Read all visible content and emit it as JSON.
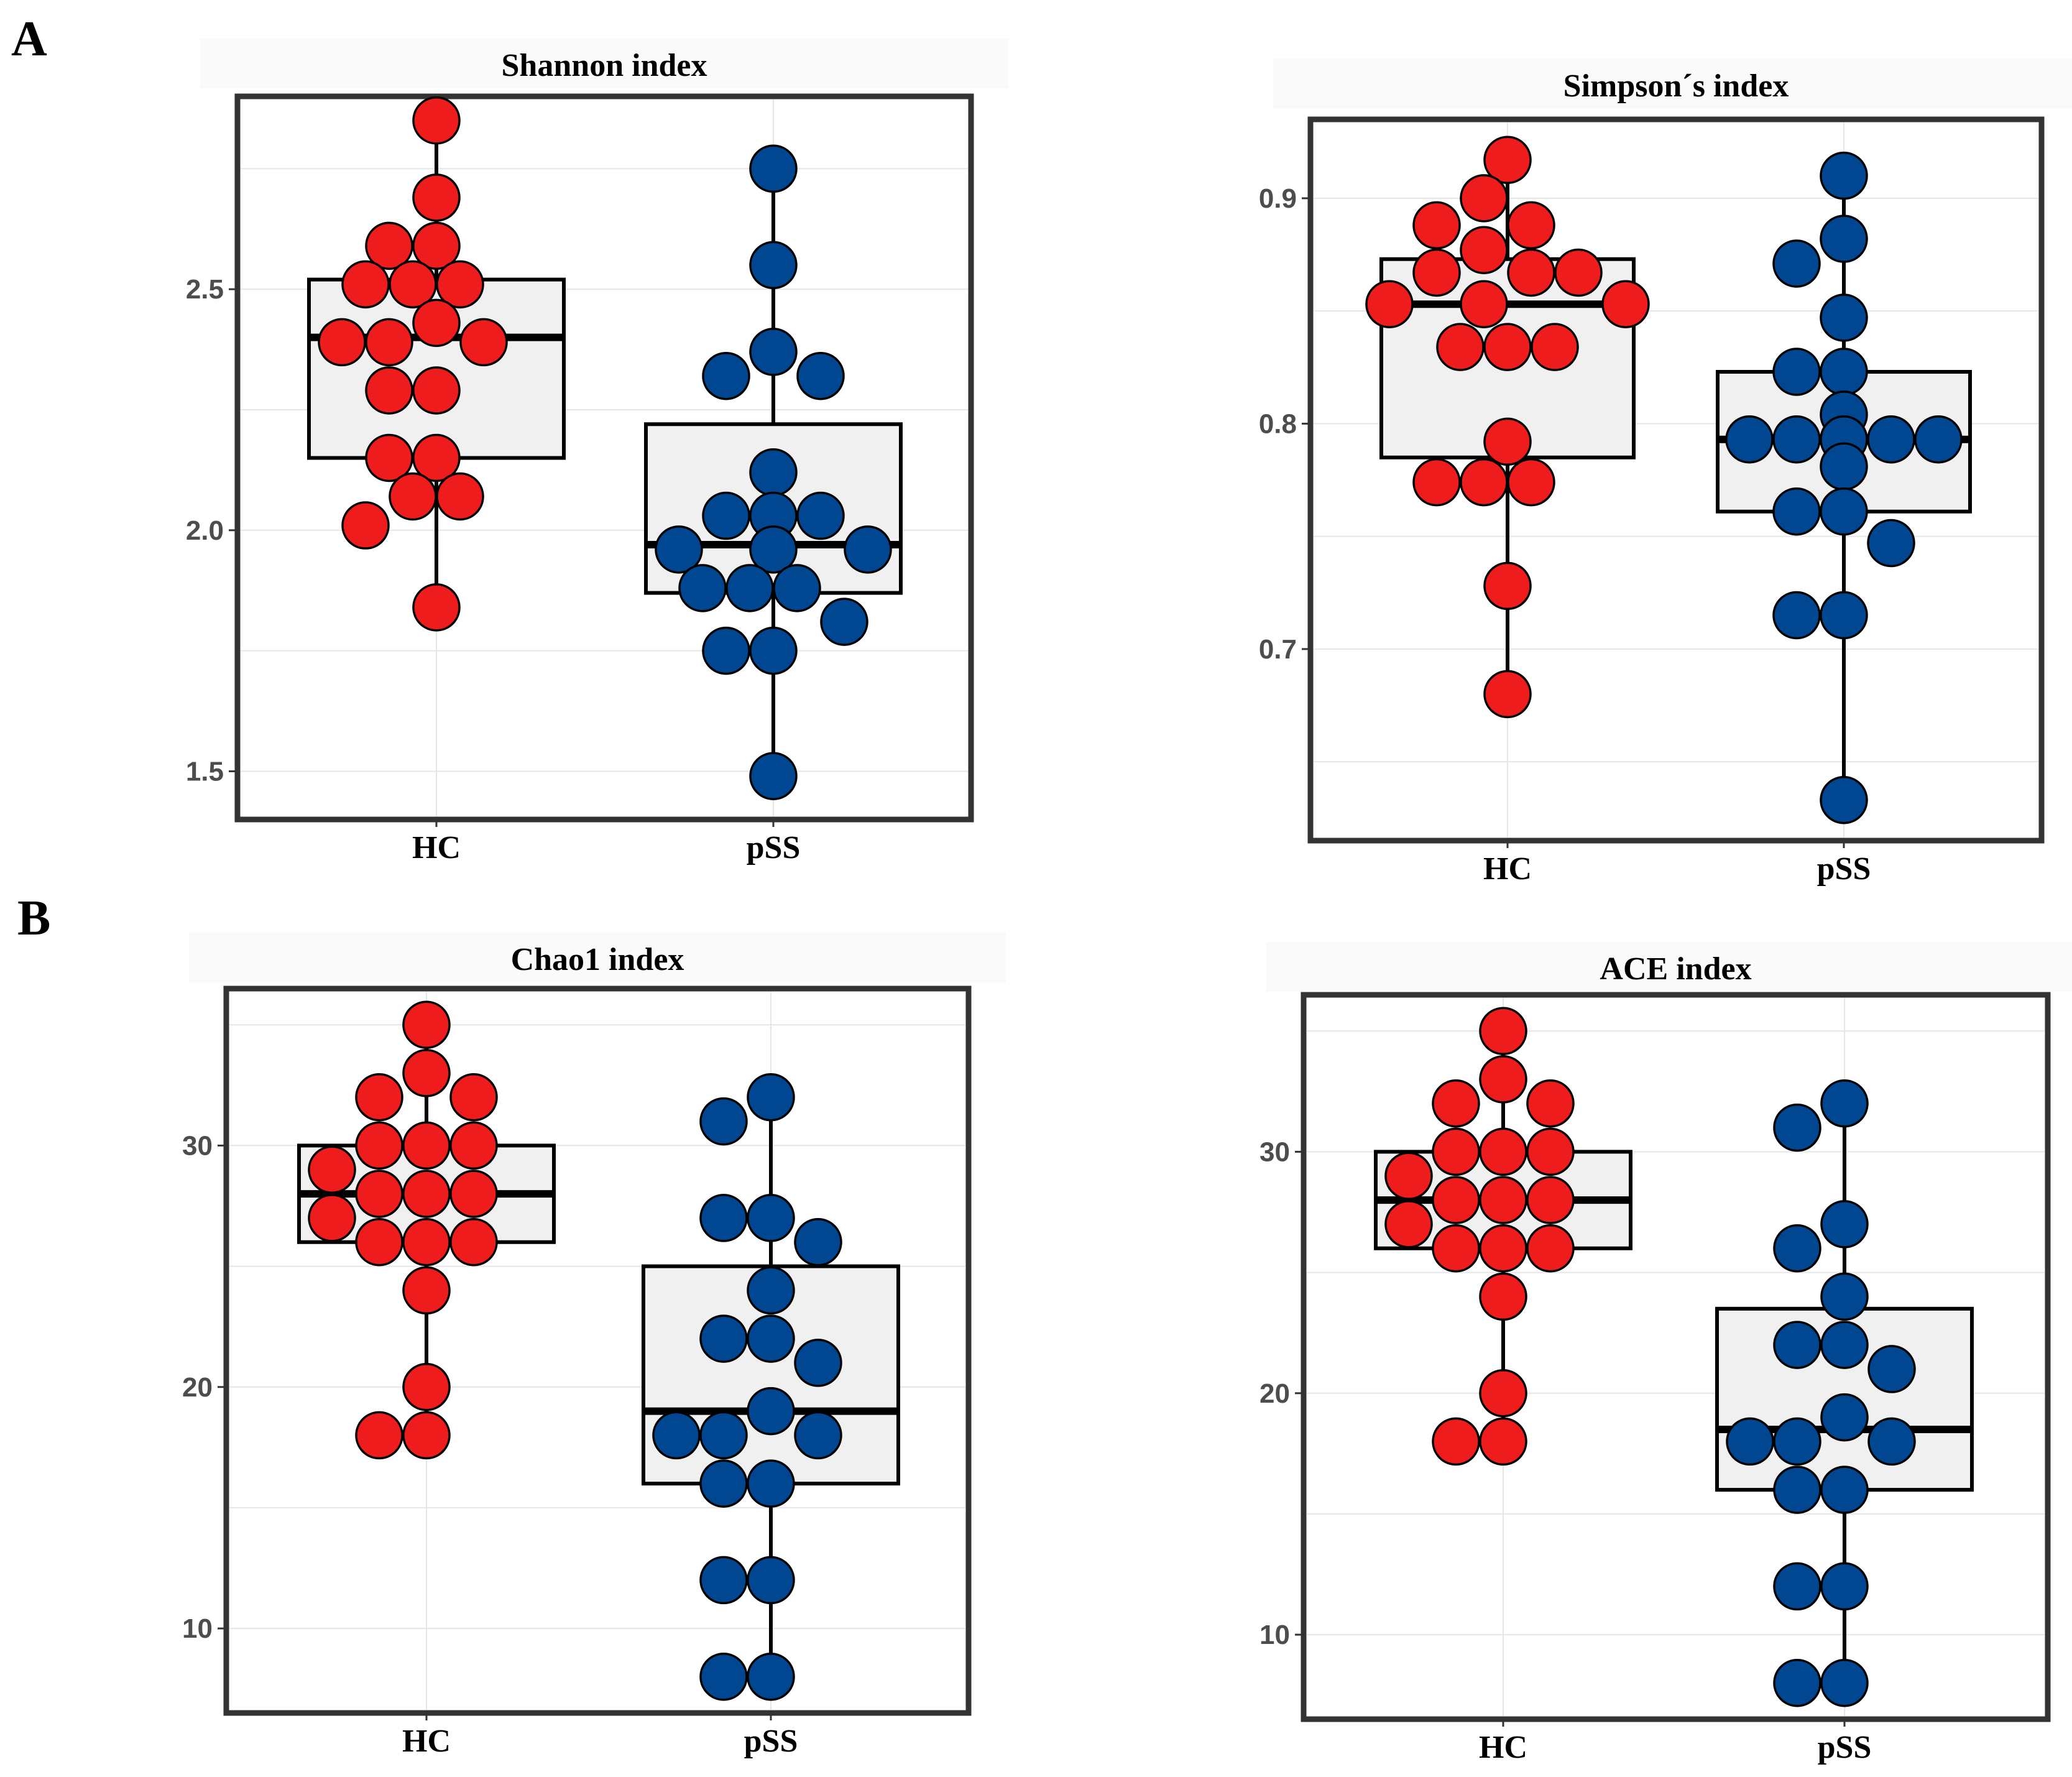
{
  "panel_labels": {
    "a": "A",
    "b": "B"
  },
  "colors": {
    "hc": "#ee1c1c",
    "pss": "#004690"
  },
  "chart_data": [
    {
      "id": "shannon",
      "type": "box",
      "title": "Shannon index",
      "categories": [
        "HC",
        "pSS"
      ],
      "ylim": [
        1.4,
        2.9
      ],
      "yticks": [
        "1.5",
        "2.0",
        "2.5"
      ],
      "grid": true,
      "series": [
        {
          "name": "HC",
          "box": {
            "q1": 2.15,
            "median": 2.4,
            "q3": 2.52,
            "lower": 1.84,
            "upper": 2.85
          },
          "points": [
            2.85,
            2.69,
            2.59,
            2.59,
            2.51,
            2.51,
            2.51,
            2.43,
            2.39,
            2.39,
            2.39,
            2.29,
            2.29,
            2.15,
            2.15,
            2.07,
            2.07,
            2.01,
            1.84
          ]
        },
        {
          "name": "pSS",
          "box": {
            "q1": 1.87,
            "median": 1.97,
            "q3": 2.22,
            "lower": 1.49,
            "upper": 2.75
          },
          "points": [
            2.75,
            2.55,
            2.37,
            2.32,
            2.32,
            2.12,
            2.03,
            2.03,
            2.03,
            1.96,
            1.96,
            1.96,
            1.88,
            1.88,
            1.88,
            1.81,
            1.75,
            1.75,
            1.49
          ]
        }
      ]
    },
    {
      "id": "simpson",
      "type": "box",
      "title": "Simpson´s index",
      "categories": [
        "HC",
        "pSS"
      ],
      "ylim": [
        0.615,
        0.935
      ],
      "yticks": [
        "0.7",
        "0.8",
        "0.9"
      ],
      "grid": true,
      "series": [
        {
          "name": "HC",
          "box": {
            "q1": 0.785,
            "median": 0.853,
            "q3": 0.873,
            "lower": 0.68,
            "upper": 0.917
          },
          "points": [
            0.917,
            0.9,
            0.888,
            0.888,
            0.877,
            0.867,
            0.867,
            0.867,
            0.853,
            0.853,
            0.853,
            0.834,
            0.834,
            0.834,
            0.792,
            0.774,
            0.774,
            0.774,
            0.728,
            0.68
          ]
        },
        {
          "name": "pSS",
          "box": {
            "q1": 0.761,
            "median": 0.793,
            "q3": 0.823,
            "lower": 0.633,
            "upper": 0.91
          },
          "points": [
            0.91,
            0.882,
            0.871,
            0.847,
            0.823,
            0.823,
            0.804,
            0.793,
            0.793,
            0.793,
            0.793,
            0.793,
            0.793,
            0.781,
            0.761,
            0.761,
            0.747,
            0.715,
            0.715,
            0.633
          ]
        }
      ]
    },
    {
      "id": "chao1",
      "type": "box",
      "title": "Chao1 index",
      "categories": [
        "HC",
        "pSS"
      ],
      "ylim": [
        6.5,
        36.5
      ],
      "yticks": [
        "10",
        "20",
        "30"
      ],
      "grid": true,
      "series": [
        {
          "name": "HC",
          "box": {
            "q1": 26,
            "median": 28,
            "q3": 30,
            "lower": 18,
            "upper": 35
          },
          "points": [
            35,
            33,
            32,
            32,
            30,
            30,
            30,
            29,
            28,
            28,
            28,
            27,
            26,
            26,
            26,
            24,
            20,
            18,
            18
          ]
        },
        {
          "name": "pSS",
          "box": {
            "q1": 16,
            "median": 19,
            "q3": 25,
            "lower": 8,
            "upper": 32
          },
          "points": [
            32,
            31,
            27,
            27,
            26,
            24,
            22,
            22,
            21,
            19,
            18,
            18,
            18,
            16,
            16,
            12,
            12,
            8,
            8
          ]
        }
      ]
    },
    {
      "id": "ace",
      "type": "box",
      "title": "ACE index",
      "categories": [
        "HC",
        "pSS"
      ],
      "ylim": [
        6.5,
        36.5
      ],
      "yticks": [
        "10",
        "20",
        "30"
      ],
      "grid": true,
      "series": [
        {
          "name": "HC",
          "box": {
            "q1": 26,
            "median": 28,
            "q3": 30,
            "lower": 18,
            "upper": 35
          },
          "points": [
            35,
            33,
            32,
            32,
            30,
            30,
            30,
            29,
            28,
            28,
            28,
            27,
            26,
            26,
            26,
            24,
            20,
            18,
            18
          ]
        },
        {
          "name": "pSS",
          "box": {
            "q1": 16,
            "median": 18.5,
            "q3": 23.5,
            "lower": 8,
            "upper": 32
          },
          "points": [
            32,
            31,
            27,
            26,
            24,
            22,
            22,
            21,
            19,
            18,
            18,
            18,
            16,
            16,
            12,
            12,
            8,
            8
          ]
        }
      ]
    }
  ]
}
